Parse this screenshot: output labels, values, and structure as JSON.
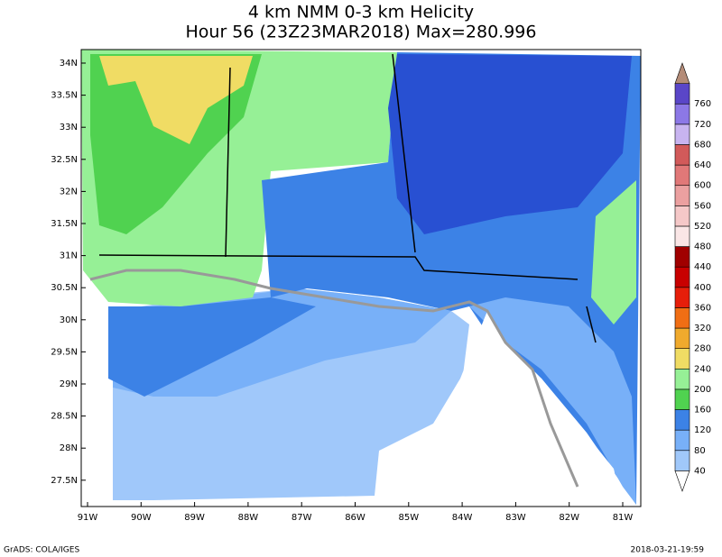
{
  "title": [
    "4 km NMM 0-3 km Helicity",
    "Hour 56 (23Z23MAR2018) Max=280.996"
  ],
  "lat_labels": [
    "34N",
    "33.5N",
    "33N",
    "32.5N",
    "32N",
    "31.5N",
    "31N",
    "30.5N",
    "30N",
    "29.5N",
    "29N",
    "28.5N",
    "28N",
    "27.5N"
  ],
  "lon_labels": [
    "91W",
    "90W",
    "89W",
    "88W",
    "87W",
    "86W",
    "85W",
    "84W",
    "83W",
    "82W",
    "81W"
  ],
  "colorbar": {
    "labels": [
      40,
      80,
      120,
      160,
      200,
      240,
      280,
      320,
      360,
      400,
      440,
      480,
      520,
      560,
      600,
      640,
      680,
      720,
      760
    ],
    "colors": [
      "#ffffff",
      "#a0c8fa",
      "#78b0f8",
      "#3c82e6",
      "#50d250",
      "#96f096",
      "#f0dc64",
      "#f0aa2d",
      "#f06e14",
      "#e61e0a",
      "#c80000",
      "#a00000",
      "#fae6e6",
      "#f5c8c8",
      "#eba0a0",
      "#e17878",
      "#d25a5a",
      "#c8b4f0",
      "#8c78e6",
      "#5a46c8",
      "#b48c78"
    ]
  },
  "footer": {
    "left": "GrADS: COLA/IGES",
    "right": "2018-03-21-19:59"
  }
}
